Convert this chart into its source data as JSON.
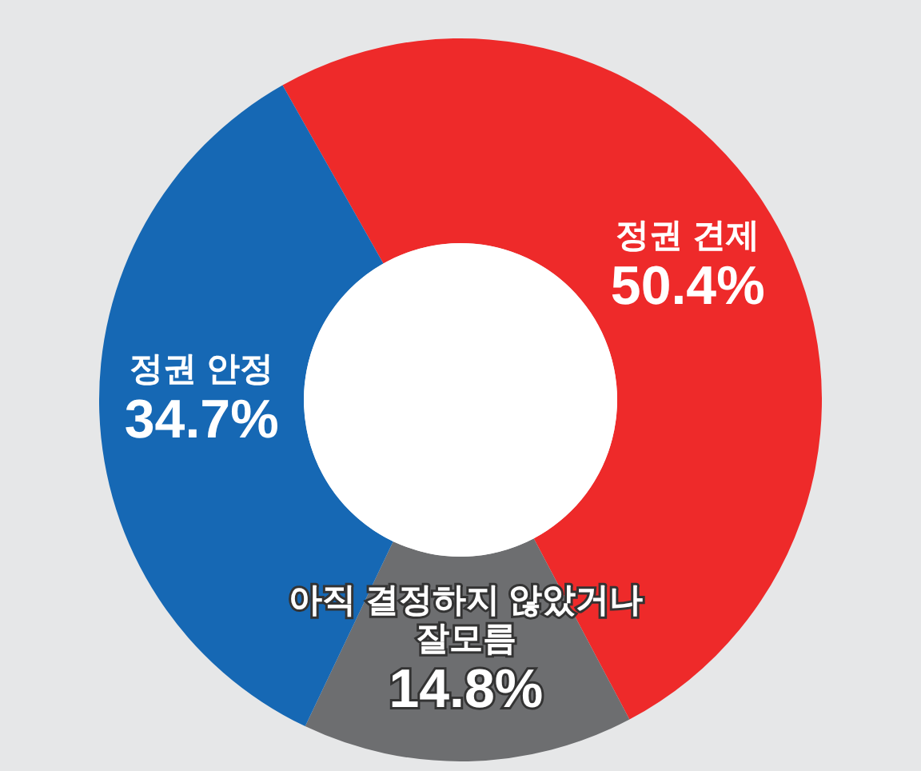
{
  "chart_data": {
    "type": "donut",
    "categories": [
      "정권 견제",
      "아직 결정하지 않았거나 잘모름",
      "정권 안정"
    ],
    "values": [
      50.4,
      14.8,
      34.7
    ],
    "colors": [
      "#ee2a2a",
      "#6d6e70",
      "#1668b4"
    ],
    "value_labels": [
      "50.4%",
      "14.8%",
      "34.7%"
    ]
  }
}
